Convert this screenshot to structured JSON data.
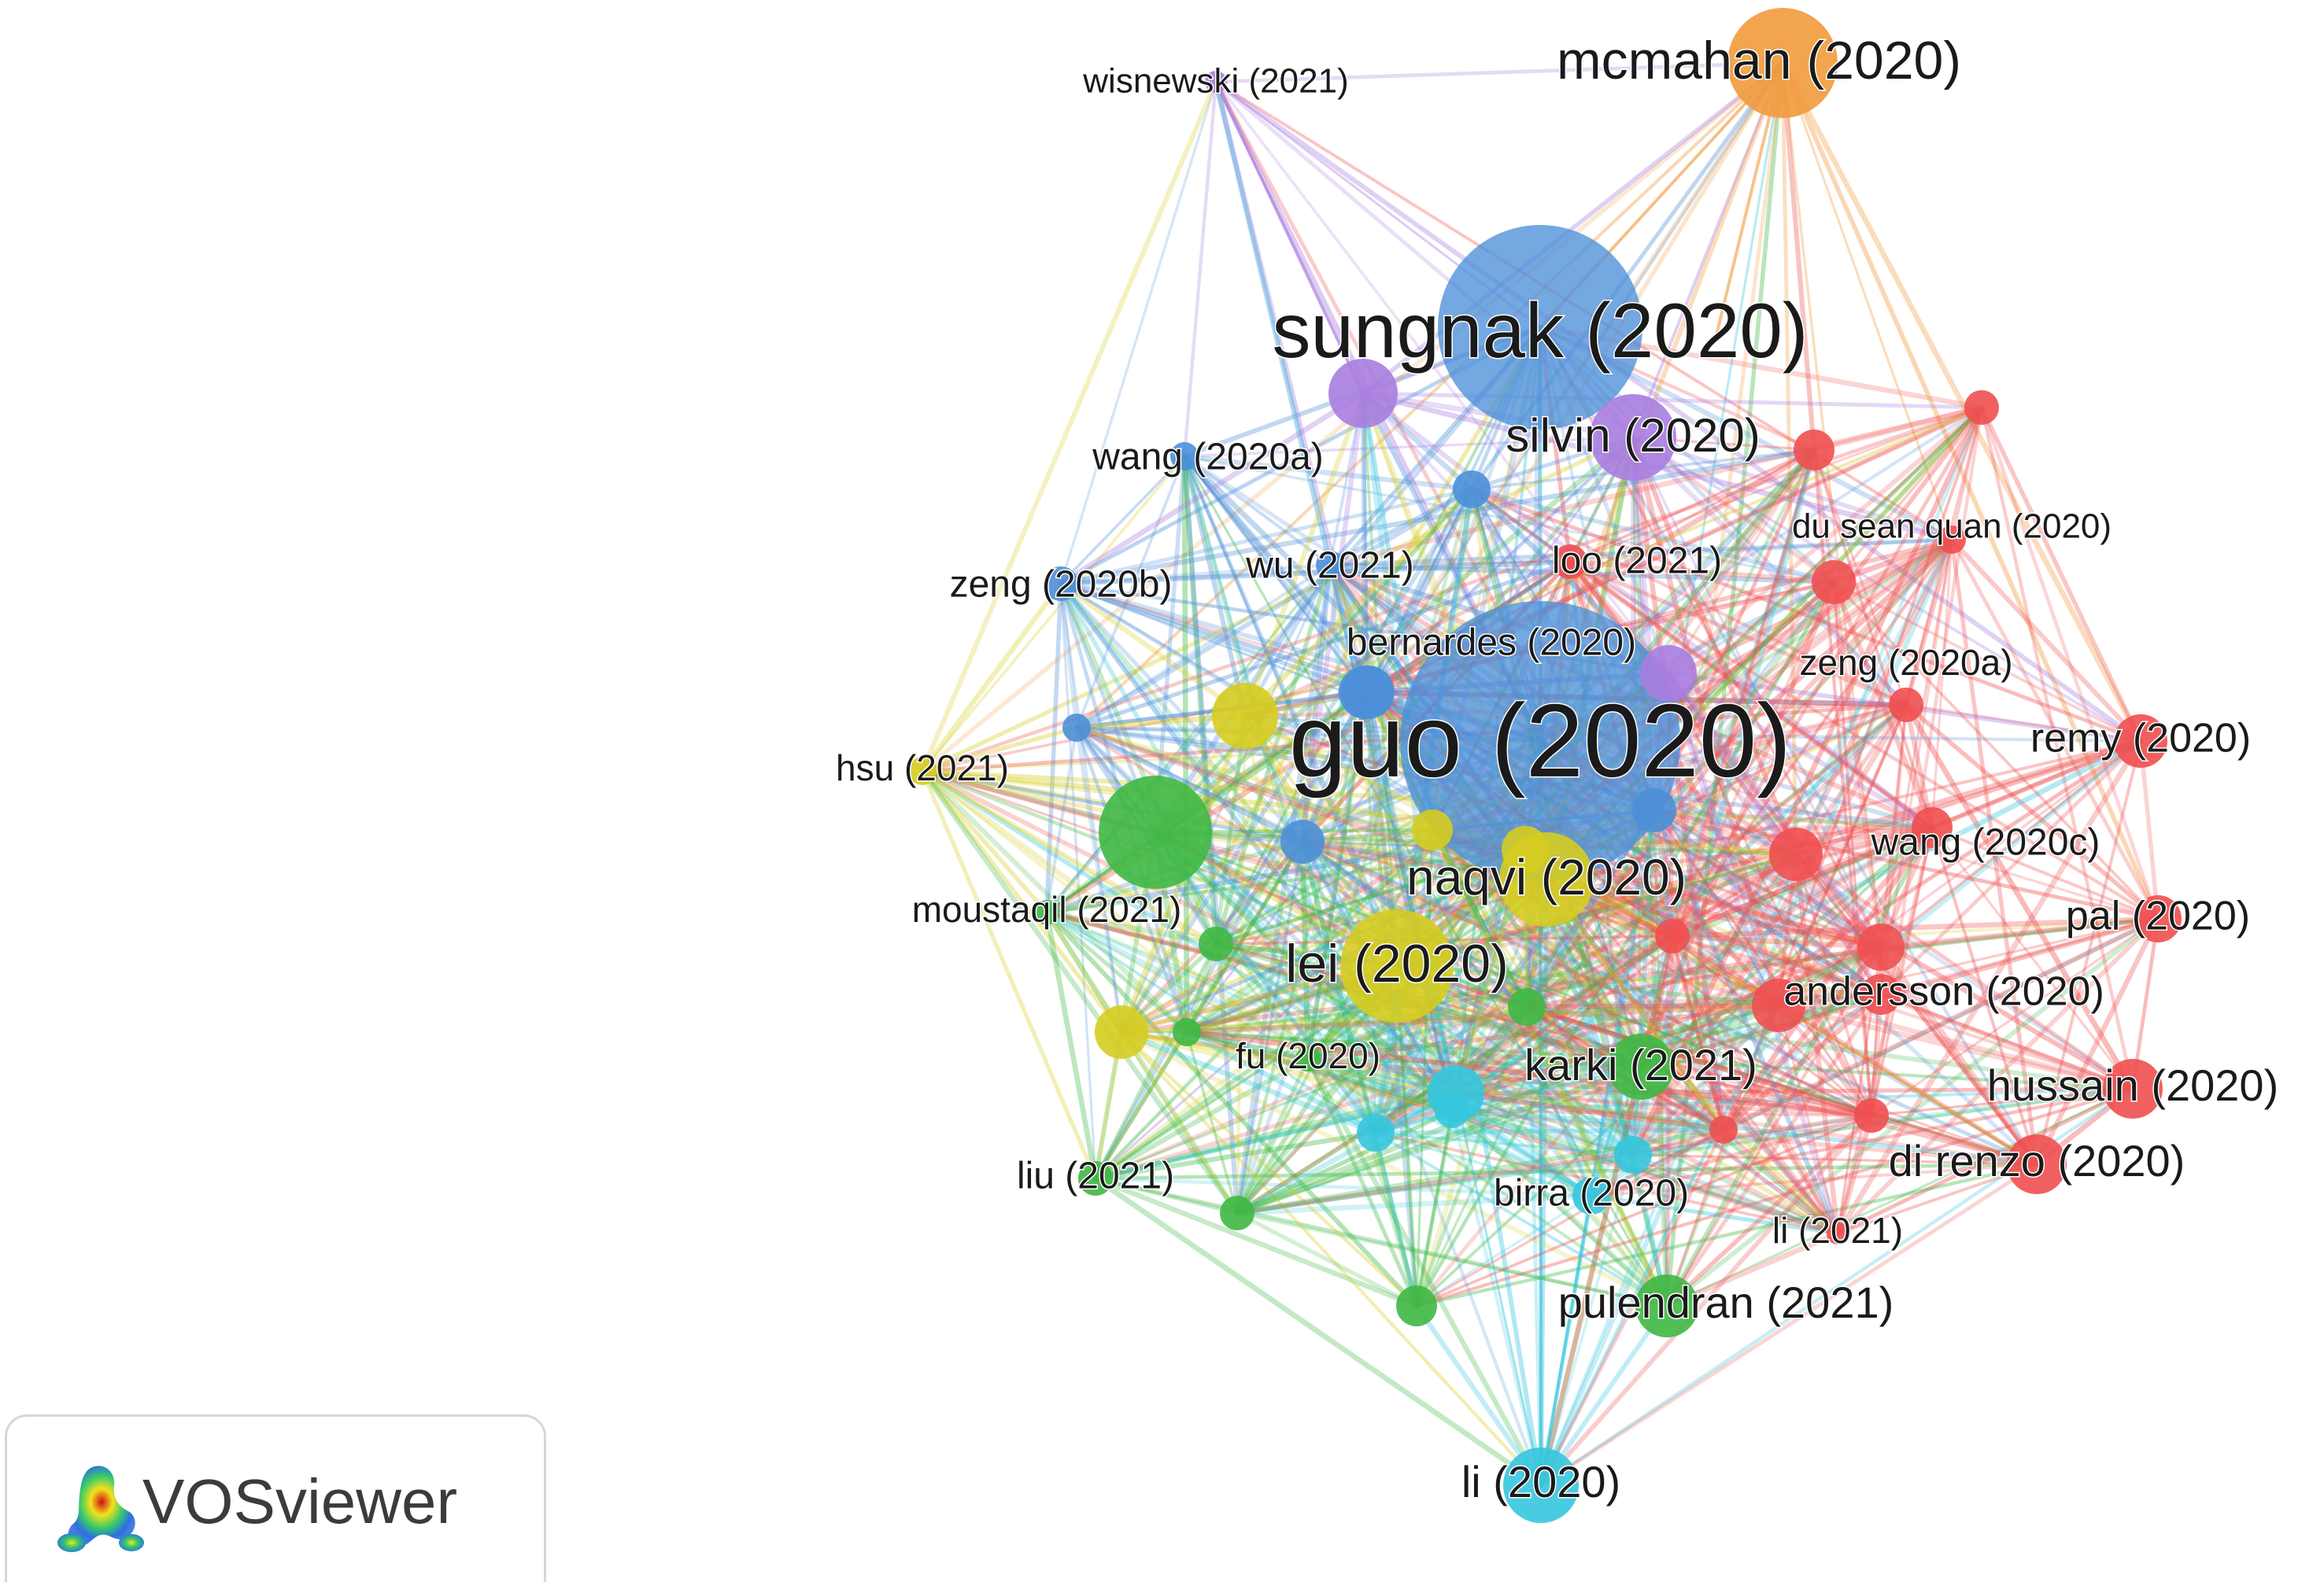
{
  "brand": {
    "name": "VOSviewer"
  },
  "colors": {
    "red": "#ef4f50",
    "blue": "#4d8fd8",
    "green": "#3fb844",
    "yellow": "#d6cc20",
    "cyan": "#35c6de",
    "purple": "#a97de0",
    "orange": "#f29a3c"
  },
  "nodes": [
    {
      "id": "sungnak",
      "label": "sungnak (2020)",
      "cluster": "blue"
    },
    {
      "id": "guo",
      "label": "guo (2020)",
      "cluster": "blue"
    },
    {
      "id": "mcmahan",
      "label": "mcmahan (2020)",
      "cluster": "orange"
    },
    {
      "id": "wisnewski",
      "label": "wisnewski (2021)",
      "cluster": "purple"
    },
    {
      "id": "silvin",
      "label": "silvin (2020)",
      "cluster": "purple"
    },
    {
      "id": "wang2020a",
      "label": "wang (2020a)",
      "cluster": "blue"
    },
    {
      "id": "zeng2020b",
      "label": "zeng (2020b)",
      "cluster": "blue"
    },
    {
      "id": "wu2021",
      "label": "wu (2021)",
      "cluster": "blue"
    },
    {
      "id": "loo2021",
      "label": "loo (2021)",
      "cluster": "red"
    },
    {
      "id": "bernardes",
      "label": "bernardes (2020)",
      "cluster": "blue"
    },
    {
      "id": "duseanquan",
      "label": "du sean quan (2020)",
      "cluster": "red"
    },
    {
      "id": "zeng2020a",
      "label": "zeng (2020a)",
      "cluster": "red"
    },
    {
      "id": "remy",
      "label": "remy (2020)",
      "cluster": "red"
    },
    {
      "id": "hsu2021",
      "label": "hsu (2021)",
      "cluster": "yellow"
    },
    {
      "id": "wang2020c",
      "label": "wang (2020c)",
      "cluster": "red"
    },
    {
      "id": "naqvi",
      "label": "naqvi (2020)",
      "cluster": "yellow"
    },
    {
      "id": "moustaqil",
      "label": "moustaqil (2021)",
      "cluster": "green"
    },
    {
      "id": "pal",
      "label": "pal (2020)",
      "cluster": "red"
    },
    {
      "id": "lei",
      "label": "lei (2020)",
      "cluster": "yellow"
    },
    {
      "id": "andersson",
      "label": "andersson (2020)",
      "cluster": "red"
    },
    {
      "id": "fu2020",
      "label": "fu (2020)",
      "cluster": "green"
    },
    {
      "id": "karki",
      "label": "karki (2021)",
      "cluster": "green"
    },
    {
      "id": "hussain",
      "label": "hussain (2020)",
      "cluster": "red"
    },
    {
      "id": "direnzo",
      "label": "di renzo (2020)",
      "cluster": "red"
    },
    {
      "id": "liu2021",
      "label": "liu (2021)",
      "cluster": "green"
    },
    {
      "id": "birra",
      "label": "birra (2020)",
      "cluster": "cyan"
    },
    {
      "id": "li2021",
      "label": "li (2021)",
      "cluster": "red"
    },
    {
      "id": "pulendran",
      "label": "pulendran (2021)",
      "cluster": "green"
    },
    {
      "id": "li2020",
      "label": "li (2020)",
      "cluster": "cyan"
    }
  ]
}
